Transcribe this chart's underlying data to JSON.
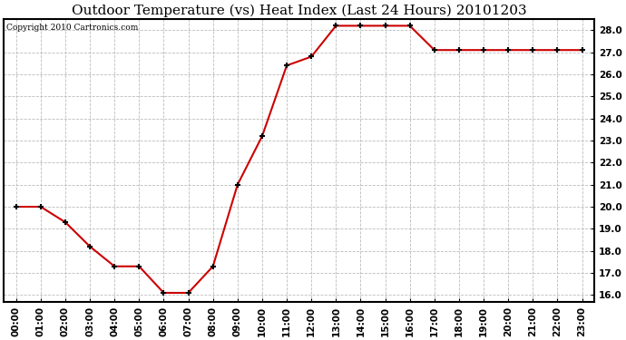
{
  "title": "Outdoor Temperature (vs) Heat Index (Last 24 Hours) 20101203",
  "copyright": "Copyright 2010 Cartronics.com",
  "x_labels": [
    "00:00",
    "01:00",
    "02:00",
    "03:00",
    "04:00",
    "05:00",
    "06:00",
    "07:00",
    "08:00",
    "09:00",
    "10:00",
    "11:00",
    "12:00",
    "13:00",
    "14:00",
    "15:00",
    "16:00",
    "17:00",
    "18:00",
    "19:00",
    "20:00",
    "21:00",
    "22:00",
    "23:00"
  ],
  "y_values": [
    20.0,
    20.0,
    19.3,
    18.2,
    17.3,
    17.3,
    16.1,
    16.1,
    17.3,
    21.0,
    23.2,
    26.4,
    26.8,
    28.2,
    28.2,
    28.2,
    28.2,
    27.1,
    27.1,
    27.1,
    27.1,
    27.1,
    27.1,
    27.1
  ],
  "ylim": [
    15.7,
    28.5
  ],
  "yticks": [
    16.0,
    17.0,
    18.0,
    19.0,
    20.0,
    21.0,
    22.0,
    23.0,
    24.0,
    25.0,
    26.0,
    27.0,
    28.0
  ],
  "line_color": "#cc0000",
  "marker": "+",
  "marker_size": 5,
  "marker_color": "#000000",
  "grid_color": "#bbbbbb",
  "grid_style": "--",
  "bg_color": "#ffffff",
  "title_fontsize": 11,
  "copyright_fontsize": 6.5,
  "tick_fontsize": 7.5,
  "fig_width": 6.9,
  "fig_height": 3.75,
  "dpi": 100
}
